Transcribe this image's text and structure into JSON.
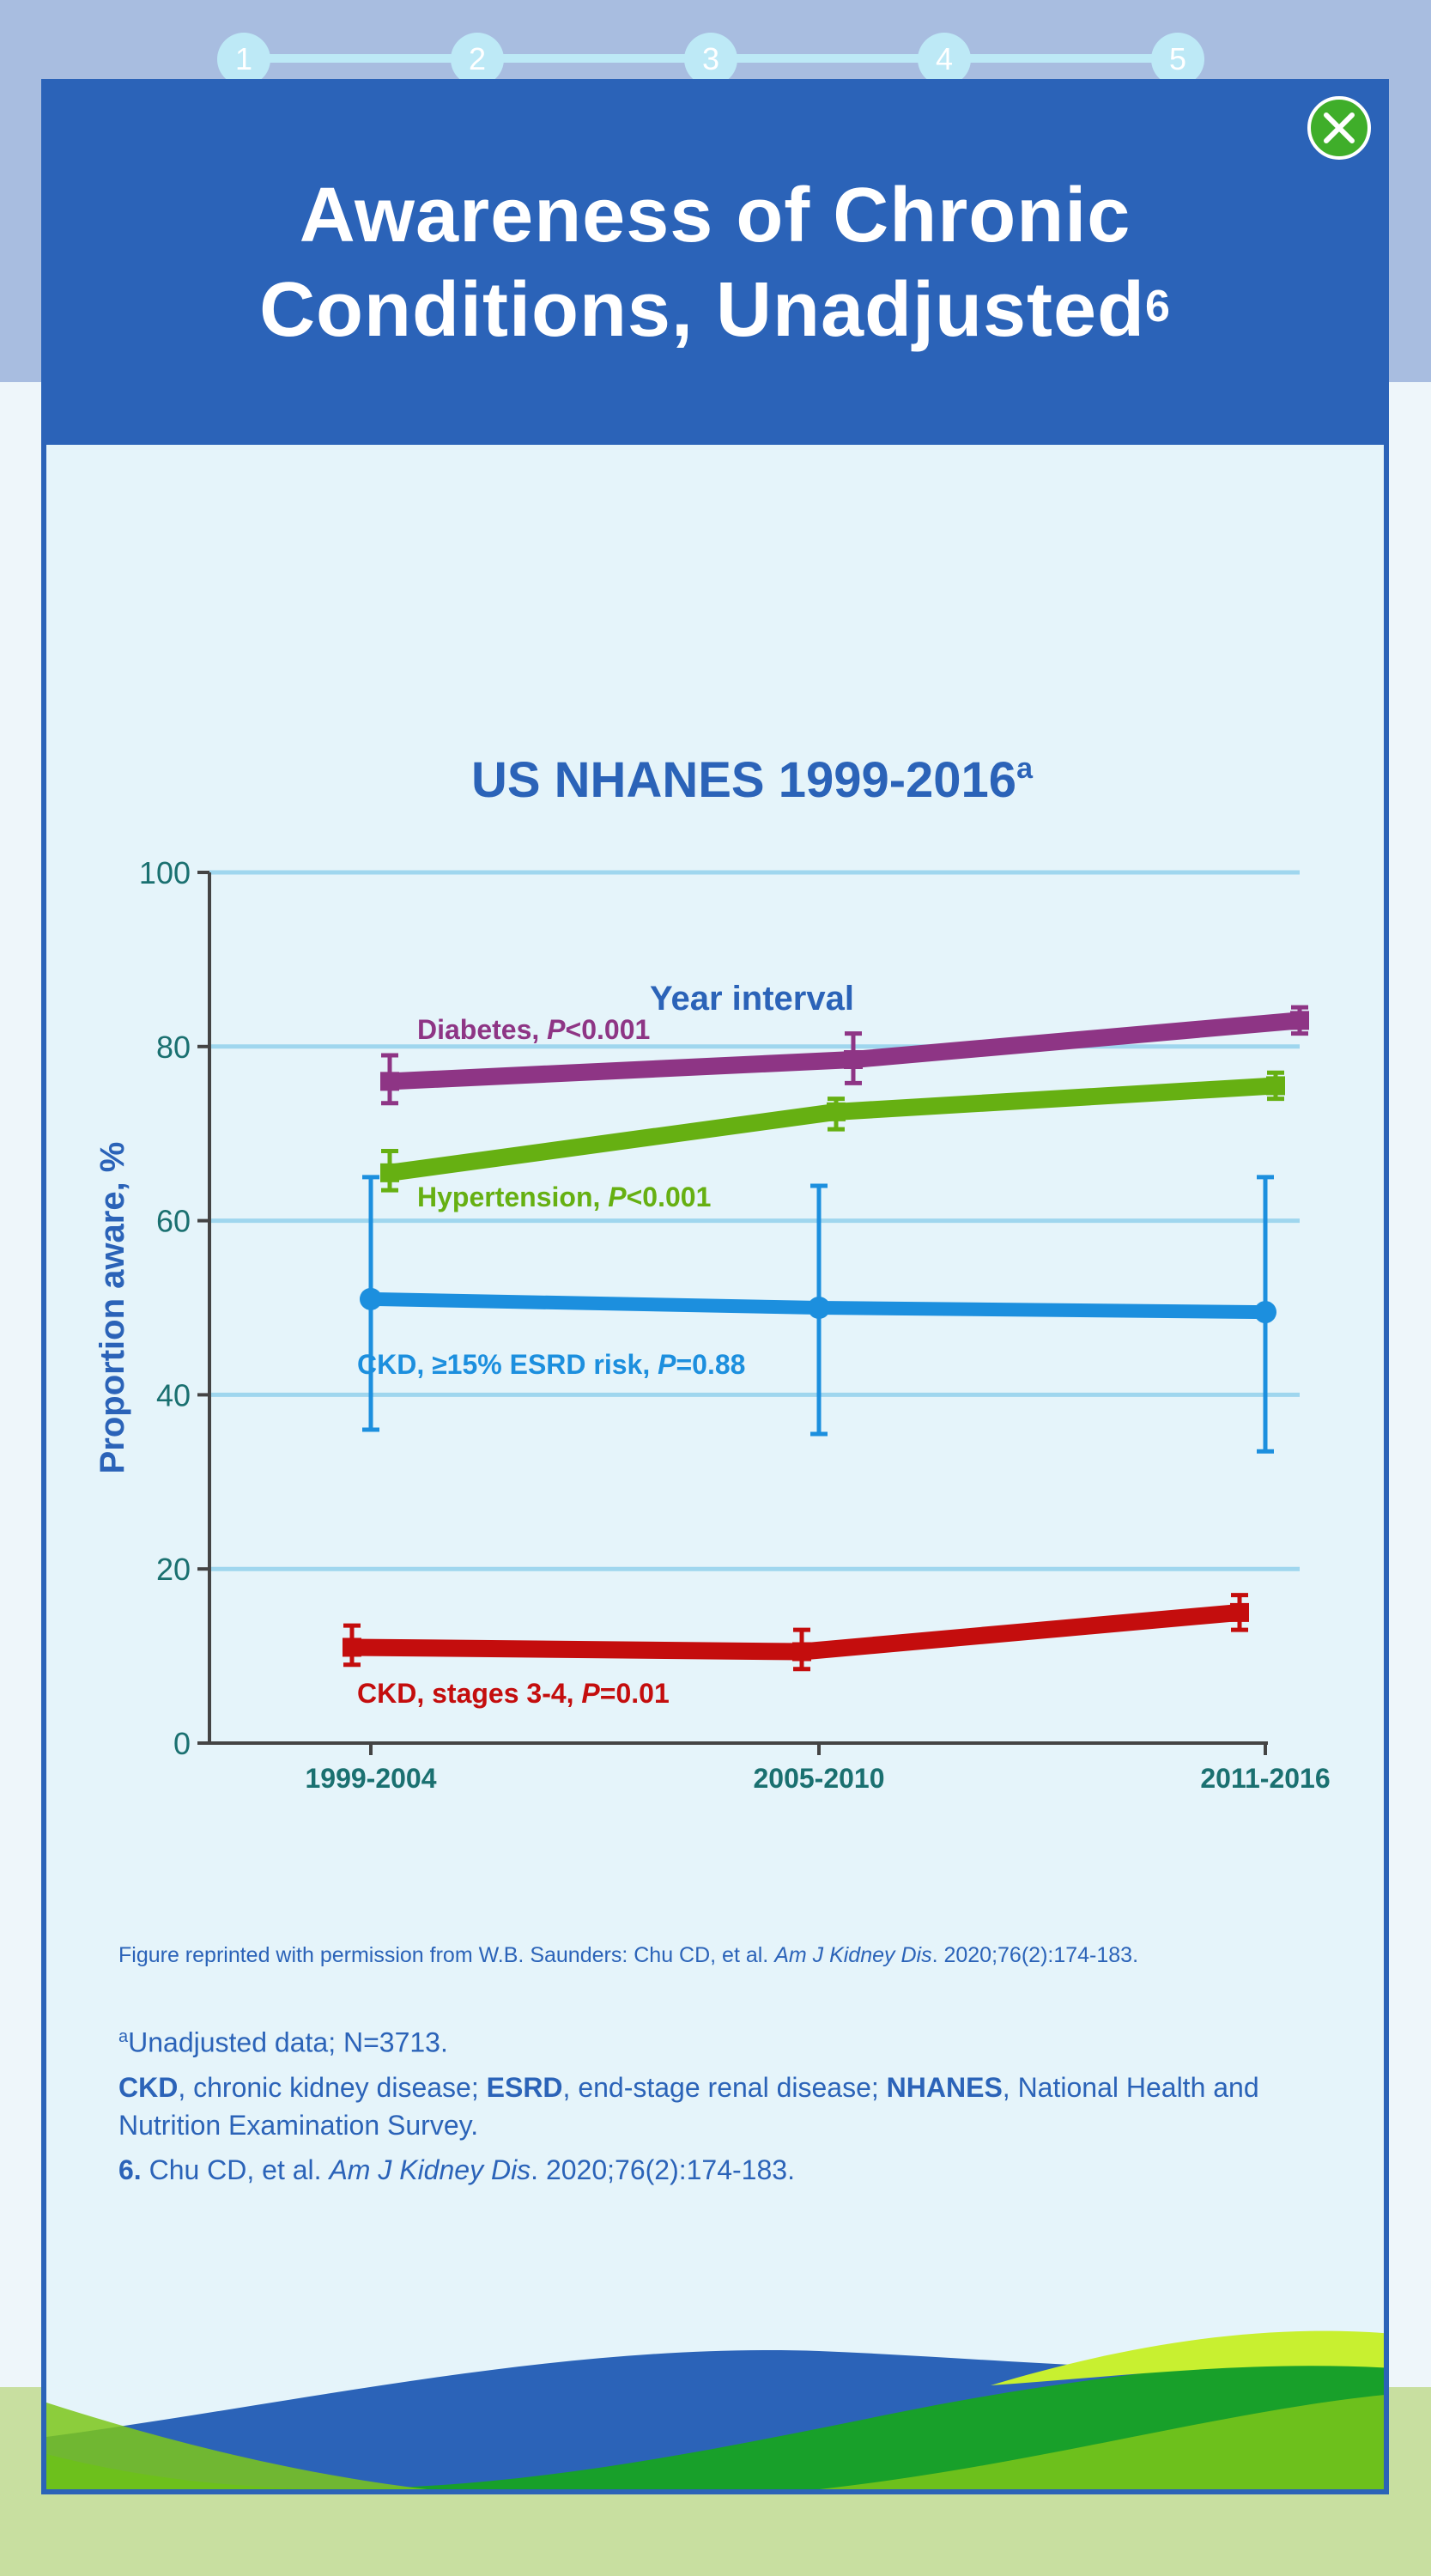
{
  "stepper": {
    "steps": [
      "1",
      "2",
      "3",
      "4",
      "5"
    ],
    "active": 2
  },
  "header": {
    "title_line1": "Awareness of Chronic",
    "title_line2": "Conditions, Unadjusted",
    "title_sup": "6"
  },
  "chart_data": {
    "type": "line",
    "title": "US NHANES 1999-2016",
    "title_sup": "a",
    "xlabel": "Year interval",
    "ylabel": "Proportion aware, %",
    "categories": [
      "1999-2004",
      "2005-2010",
      "2011-2016"
    ],
    "ylim": [
      0,
      100
    ],
    "yticks": [
      0,
      20,
      40,
      60,
      80,
      100
    ],
    "grid": true,
    "series": [
      {
        "name": "Diabetes",
        "p_label": "P",
        "p_value": "<0.001",
        "color": "#8e3585",
        "values": [
          76,
          78.5,
          83
        ],
        "errors": [
          [
            73.5,
            79
          ],
          [
            75.8,
            81.5
          ],
          [
            81.5,
            84.5
          ]
        ]
      },
      {
        "name": "Hypertension",
        "p_label": "P",
        "p_value": "<0.001",
        "color": "#66b012",
        "values": [
          65.5,
          72.5,
          75.5
        ],
        "errors": [
          [
            63.5,
            68
          ],
          [
            70.5,
            74
          ],
          [
            74,
            77
          ]
        ]
      },
      {
        "name": "CKD, ≥15% ESRD risk",
        "p_label": "P",
        "p_value": "=0.88",
        "color": "#1c8fde",
        "values": [
          51,
          50,
          49.5
        ],
        "errors": [
          [
            36,
            65
          ],
          [
            35.5,
            64
          ],
          [
            33.5,
            65
          ]
        ]
      },
      {
        "name": "CKD, stages 3-4",
        "p_label": "P",
        "p_value": "=0.01",
        "color": "#c40d0d",
        "values": [
          11,
          10.5,
          15
        ],
        "errors": [
          [
            9,
            13.5
          ],
          [
            8.5,
            13
          ],
          [
            13,
            17
          ]
        ]
      }
    ]
  },
  "footer": {
    "source": {
      "prefix": "Figure reprinted with permission from W.B. Saunders: Chu CD, et al. ",
      "journal": "Am J Kidney Dis",
      "suffix": ". 2020;76(2):174-183."
    },
    "note_sup": "a",
    "note": "Unadjusted data; N=3713.",
    "abbreviations": [
      {
        "abbr": "CKD",
        "def": ", chronic kidney disease; "
      },
      {
        "abbr": "ESRD",
        "def": ", end-stage renal disease; "
      },
      {
        "abbr": "NHANES",
        "def": ", National Health and Nutrition Examination Survey."
      }
    ],
    "reference": {
      "num": "6.",
      "text": " Chu CD, et al. ",
      "journal": "Am J Kidney Dis",
      "suffix": ". 2020;76(2):174-183."
    }
  },
  "colors": {
    "brand_blue": "#2b63b8",
    "panel": "#e5f4fa",
    "grid": "#9fd6ee",
    "axis_text": "#1a7070",
    "close_green": "#3fae2a"
  }
}
